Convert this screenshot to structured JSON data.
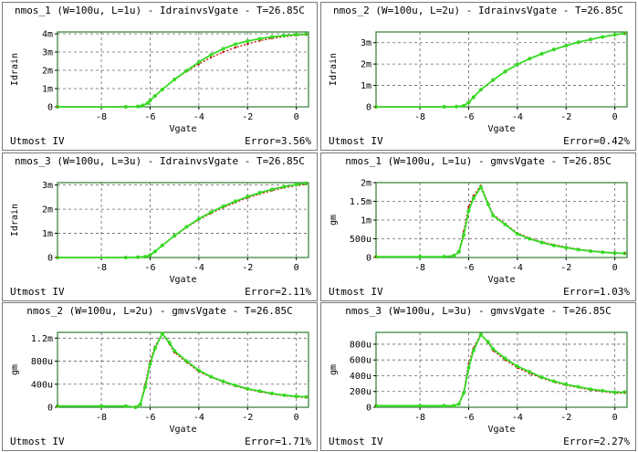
{
  "colors": {
    "plot_border": "#2e7d32",
    "grid": "#666666",
    "measured": "#cc1111",
    "simulated": "#33dd22"
  },
  "footer_model": "Utmost IV",
  "chart_data": [
    {
      "type": "line",
      "title": "nmos_1 (W=100u, L=1u) - IdrainvsVgate - T=26.85C",
      "xlabel": "Vgate",
      "ylabel": "Idrain",
      "xlim": [
        -9.8,
        0.5
      ],
      "ylim": [
        0,
        4.1
      ],
      "xticks": [
        -8,
        -6,
        -4,
        -2,
        0
      ],
      "xtick_labels": [
        "-8",
        "-6",
        "-4",
        "-2",
        "0"
      ],
      "yticks": [
        0,
        1,
        2,
        3,
        4
      ],
      "ytick_labels": [
        "0",
        "1m",
        "2m",
        "3m",
        "4m"
      ],
      "error": "Error=3.56%",
      "x": [
        -9.8,
        -7,
        -6.5,
        -6.3,
        -6.1,
        -6,
        -5.8,
        -5.5,
        -5,
        -4.5,
        -4,
        -3.5,
        -3,
        -2.5,
        -2,
        -1.5,
        -1,
        -0.5,
        0,
        0.4
      ],
      "series": [
        {
          "name": "measured",
          "values": [
            0,
            0,
            0.02,
            0.08,
            0.2,
            0.35,
            0.6,
            0.95,
            1.5,
            1.95,
            2.35,
            2.7,
            3.0,
            3.25,
            3.45,
            3.62,
            3.75,
            3.85,
            3.92,
            3.95
          ]
        },
        {
          "name": "simulated",
          "values": [
            0,
            0,
            0.02,
            0.08,
            0.2,
            0.35,
            0.6,
            0.95,
            1.5,
            1.98,
            2.45,
            2.85,
            3.18,
            3.43,
            3.6,
            3.73,
            3.83,
            3.9,
            3.95,
            3.98
          ]
        }
      ]
    },
    {
      "type": "line",
      "title": "nmos_2 (W=100u, L=2u) - IdrainvsVgate - T=26.85C",
      "xlabel": "Vgate",
      "ylabel": "Idrain",
      "xlim": [
        -9.8,
        0.5
      ],
      "ylim": [
        0,
        3.5
      ],
      "xticks": [
        -8,
        -6,
        -4,
        -2,
        0
      ],
      "xtick_labels": [
        "-8",
        "-6",
        "-4",
        "-2",
        "0"
      ],
      "yticks": [
        0,
        1,
        2,
        3
      ],
      "ytick_labels": [
        "0",
        "1m",
        "2m",
        "3m"
      ],
      "error": "Error=0.42%",
      "x": [
        -9.8,
        -7,
        -6.5,
        -6.2,
        -6,
        -5.8,
        -5.5,
        -5,
        -4.5,
        -4,
        -3.5,
        -3,
        -2.5,
        -2,
        -1.5,
        -1,
        -0.5,
        0,
        0.4
      ],
      "series": [
        {
          "name": "measured",
          "values": [
            0,
            0,
            0.01,
            0.05,
            0.2,
            0.45,
            0.8,
            1.25,
            1.65,
            1.98,
            2.25,
            2.48,
            2.68,
            2.86,
            3.02,
            3.15,
            3.27,
            3.37,
            3.43
          ]
        },
        {
          "name": "simulated",
          "values": [
            0,
            0,
            0.01,
            0.05,
            0.2,
            0.45,
            0.8,
            1.25,
            1.65,
            1.98,
            2.25,
            2.48,
            2.68,
            2.86,
            3.02,
            3.15,
            3.27,
            3.37,
            3.43
          ]
        }
      ]
    },
    {
      "type": "line",
      "title": "nmos_3 (W=100u, L=3u) - IdrainvsVgate - T=26.85C",
      "xlabel": "Vgate",
      "ylabel": "Idrain",
      "xlim": [
        -9.8,
        0.5
      ],
      "ylim": [
        0,
        3.1
      ],
      "xticks": [
        -8,
        -6,
        -4,
        -2,
        0
      ],
      "xtick_labels": [
        "-8",
        "-6",
        "-4",
        "-2",
        "0"
      ],
      "yticks": [
        0,
        1,
        2,
        3
      ],
      "ytick_labels": [
        "0",
        "1m",
        "2m",
        "3m"
      ],
      "error": "Error=2.11%",
      "x": [
        -9.8,
        -7,
        -6.5,
        -6.2,
        -6,
        -5.8,
        -5.5,
        -5,
        -4.5,
        -4,
        -3.5,
        -3,
        -2.5,
        -2,
        -1.5,
        -1,
        -0.5,
        0,
        0.4
      ],
      "series": [
        {
          "name": "measured",
          "values": [
            0,
            0,
            0.01,
            0.03,
            0.1,
            0.25,
            0.5,
            0.9,
            1.25,
            1.57,
            1.83,
            2.07,
            2.28,
            2.47,
            2.63,
            2.77,
            2.89,
            2.98,
            3.03
          ]
        },
        {
          "name": "simulated",
          "values": [
            0,
            0,
            0.01,
            0.03,
            0.1,
            0.25,
            0.5,
            0.9,
            1.27,
            1.6,
            1.88,
            2.12,
            2.33,
            2.52,
            2.68,
            2.82,
            2.93,
            3.02,
            3.07
          ]
        }
      ]
    },
    {
      "type": "line",
      "title": "nmos_1 (W=100u, L=1u) - gmvsVgate - T=26.85C",
      "xlabel": "Vgate",
      "ylabel": "gm",
      "xlim": [
        -9.8,
        0.5
      ],
      "ylim": [
        0,
        2.0
      ],
      "xticks": [
        -8,
        -6,
        -4,
        -2,
        0
      ],
      "xtick_labels": [
        "-8",
        "-6",
        "-4",
        "-2",
        "0"
      ],
      "yticks": [
        0,
        0.5,
        1,
        1.5,
        2
      ],
      "ytick_labels": [
        "0",
        "500u",
        "1m",
        "1.5m",
        "2m"
      ],
      "error": "Error=1.03%",
      "x": [
        -9.8,
        -8,
        -7,
        -6.6,
        -6.4,
        -6.2,
        -6,
        -5.8,
        -5.5,
        -5.2,
        -5,
        -4.5,
        -4,
        -3.5,
        -3,
        -2.5,
        -2,
        -1.5,
        -1,
        -0.5,
        0,
        0.4
      ],
      "series": [
        {
          "name": "measured",
          "values": [
            0.02,
            0.02,
            0.02,
            0.05,
            0.15,
            0.7,
            1.35,
            1.65,
            1.92,
            1.45,
            1.15,
            0.9,
            0.65,
            0.52,
            0.42,
            0.34,
            0.28,
            0.22,
            0.18,
            0.15,
            0.12,
            0.11
          ]
        },
        {
          "name": "simulated",
          "values": [
            0.02,
            0.02,
            0.02,
            0.05,
            0.15,
            0.6,
            1.25,
            1.58,
            1.88,
            1.42,
            1.12,
            0.88,
            0.63,
            0.5,
            0.4,
            0.32,
            0.26,
            0.21,
            0.17,
            0.14,
            0.12,
            0.11
          ]
        }
      ]
    },
    {
      "type": "line",
      "title": "nmos_2 (W=100u, L=2u) - gmvsVgate - T=26.85C",
      "xlabel": "Vgate",
      "ylabel": "gm",
      "xlim": [
        -9.8,
        0.5
      ],
      "ylim": [
        0,
        1.3
      ],
      "xticks": [
        -8,
        -6,
        -4,
        -2,
        0
      ],
      "xtick_labels": [
        "-8",
        "-6",
        "-4",
        "-2",
        "0"
      ],
      "yticks": [
        0,
        0.4,
        0.8,
        1.2
      ],
      "ytick_labels": [
        "0",
        "400u",
        "800u",
        "1.2m"
      ],
      "error": "Error=1.71%",
      "x": [
        -9.8,
        -8,
        -7,
        -6.6,
        -6.4,
        -6.2,
        -6,
        -5.8,
        -5.5,
        -5.2,
        -5,
        -4.5,
        -4,
        -3.5,
        -3,
        -2.5,
        -2,
        -1.5,
        -1,
        -0.5,
        0,
        0.4
      ],
      "series": [
        {
          "name": "measured",
          "values": [
            0.02,
            0.02,
            0.02,
            0,
            0.05,
            0.4,
            0.8,
            1.05,
            1.28,
            1.1,
            0.95,
            0.78,
            0.62,
            0.52,
            0.44,
            0.37,
            0.31,
            0.27,
            0.23,
            0.2,
            0.18,
            0.17
          ]
        },
        {
          "name": "simulated",
          "values": [
            0.02,
            0.02,
            0.02,
            0,
            0.05,
            0.35,
            0.75,
            1.02,
            1.28,
            1.12,
            0.98,
            0.8,
            0.64,
            0.53,
            0.45,
            0.38,
            0.32,
            0.28,
            0.24,
            0.21,
            0.19,
            0.18
          ]
        }
      ]
    },
    {
      "type": "line",
      "title": "nmos_3 (W=100u, L=3u) - gmvsVgate - T=26.85C",
      "xlabel": "Vgate",
      "ylabel": "gm",
      "xlim": [
        -9.8,
        0.5
      ],
      "ylim": [
        0,
        0.95
      ],
      "xticks": [
        -8,
        -6,
        -4,
        -2,
        0
      ],
      "xtick_labels": [
        "-8",
        "-6",
        "-4",
        "-2",
        "0"
      ],
      "yticks": [
        0,
        0.2,
        0.4,
        0.6,
        0.8
      ],
      "ytick_labels": [
        "0",
        "200u",
        "400u",
        "600u",
        "800u"
      ],
      "error": "Error=2.27%",
      "x": [
        -9.8,
        -8,
        -7,
        -6.6,
        -6.4,
        -6.2,
        -6,
        -5.8,
        -5.5,
        -5.2,
        -5,
        -4.5,
        -4,
        -3.5,
        -3,
        -2.5,
        -2,
        -1.5,
        -1,
        -0.5,
        0,
        0.4
      ],
      "series": [
        {
          "name": "measured",
          "values": [
            0.02,
            0.02,
            0.02,
            0.02,
            0.04,
            0.2,
            0.55,
            0.75,
            0.93,
            0.82,
            0.72,
            0.6,
            0.5,
            0.43,
            0.37,
            0.32,
            0.28,
            0.25,
            0.22,
            0.2,
            0.18,
            0.18
          ]
        },
        {
          "name": "simulated",
          "values": [
            0.02,
            0.02,
            0.02,
            0.02,
            0.04,
            0.18,
            0.5,
            0.72,
            0.92,
            0.83,
            0.74,
            0.62,
            0.52,
            0.45,
            0.38,
            0.33,
            0.29,
            0.26,
            0.23,
            0.21,
            0.19,
            0.19
          ]
        }
      ]
    }
  ]
}
